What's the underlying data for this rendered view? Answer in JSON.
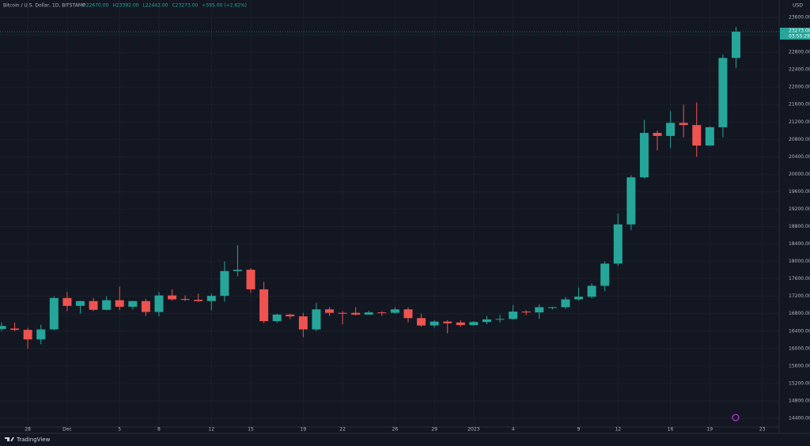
{
  "chart_data": {
    "type": "candlestick",
    "title": "Bitcoin / U.S. Dollar, 1D, BITSTAMP",
    "ohlc_legend": [
      "O22670.00",
      "H23382.00",
      "L22442.00",
      "C23273.00",
      "+595.00 (+2.62%)"
    ],
    "currency": "USD",
    "last_price_label": "23273.00",
    "countdown": "03:55:29",
    "brand": "TradingView",
    "up_color": "#26a69a",
    "down_color": "#ef5350",
    "grid": true,
    "categories": [
      null,
      null,
      "28",
      null,
      null,
      "Dec",
      null,
      null,
      null,
      "5",
      null,
      null,
      "8",
      null,
      null,
      null,
      "12",
      null,
      null,
      "15",
      null,
      null,
      null,
      "19",
      null,
      null,
      "22",
      null,
      null,
      null,
      "26",
      null,
      null,
      "29",
      null,
      null,
      "2023",
      null,
      null,
      "4",
      null,
      null,
      null,
      null,
      "9",
      null,
      null,
      "12",
      null,
      null,
      null,
      "16",
      null,
      null,
      "19",
      null,
      null,
      null,
      "23"
    ],
    "open": [
      16450,
      16460,
      16430,
      16210,
      16440,
      17160,
      16980,
      17090,
      16890,
      17110,
      16960,
      17090,
      16840,
      17220,
      17140,
      17120,
      17090,
      17210,
      17780,
      17810,
      17360,
      16630,
      16780,
      16740,
      16440,
      16900,
      16820,
      16820,
      16780,
      16830,
      16820,
      16900,
      16700,
      16530,
      16620,
      16600,
      16540,
      16610,
      16670,
      16680,
      16850,
      16830,
      16940,
      16950,
      17130,
      17190,
      17440,
      17950,
      18850,
      19930,
      20950,
      20880,
      21180,
      21130,
      20660,
      21080,
      22670,
      null,
      null
    ],
    "high": [
      16600,
      16600,
      16480,
      16550,
      17200,
      17300,
      17100,
      17160,
      17200,
      17420,
      17100,
      17140,
      17300,
      17360,
      17220,
      17260,
      17260,
      18000,
      18370,
      17850,
      17530,
      16800,
      16800,
      16820,
      17050,
      16950,
      16860,
      16950,
      16870,
      16860,
      16950,
      16950,
      16800,
      16650,
      16650,
      16650,
      16630,
      16750,
      16780,
      17000,
      16880,
      17020,
      16960,
      17180,
      17400,
      17500,
      18000,
      19100,
      19980,
      21250,
      21000,
      21450,
      21600,
      21650,
      21100,
      22750,
      23382,
      null,
      null
    ],
    "low": [
      16400,
      16400,
      16000,
      16100,
      16420,
      16860,
      16800,
      16860,
      16880,
      16880,
      16900,
      16750,
      16740,
      17100,
      17090,
      17070,
      16880,
      17080,
      17660,
      17280,
      16580,
      16590,
      16680,
      16260,
      16400,
      16750,
      16560,
      16760,
      16780,
      16750,
      16800,
      16600,
      16500,
      16480,
      16350,
      16500,
      16520,
      16560,
      16600,
      16660,
      16770,
      16680,
      16900,
      16910,
      17100,
      17150,
      17320,
      17900,
      18720,
      19900,
      20550,
      20600,
      20850,
      20400,
      20650,
      20850,
      22442,
      null,
      null
    ],
    "close": [
      16520,
      16430,
      16210,
      16440,
      17160,
      16980,
      17090,
      16890,
      17110,
      16960,
      17090,
      16840,
      17220,
      17130,
      17120,
      17090,
      17210,
      17780,
      17810,
      17360,
      16630,
      16780,
      16740,
      16440,
      16900,
      16820,
      16800,
      16780,
      16830,
      16820,
      16900,
      16700,
      16530,
      16620,
      16580,
      16540,
      16610,
      16670,
      16680,
      16850,
      16830,
      16950,
      16950,
      17130,
      17190,
      17440,
      17950,
      18850,
      19930,
      20950,
      20880,
      21180,
      21130,
      20660,
      21080,
      22670,
      23273,
      null,
      null
    ],
    "ylim": [
      14200,
      24000
    ],
    "yticks": [
      {
        "value": 23600,
        "label": "23600.00"
      },
      {
        "value": 23200,
        "label": "23200.00"
      },
      {
        "value": 22800,
        "label": "22800.00"
      },
      {
        "value": 22400,
        "label": "22400.00"
      },
      {
        "value": 22000,
        "label": "22000.00"
      },
      {
        "value": 21600,
        "label": "21600.00"
      },
      {
        "value": 21200,
        "label": "21200.00"
      },
      {
        "value": 20800,
        "label": "20800.00"
      },
      {
        "value": 20400,
        "label": "20400.00"
      },
      {
        "value": 20000,
        "label": "20000.00"
      },
      {
        "value": 19600,
        "label": "19600.00"
      },
      {
        "value": 19200,
        "label": "19200.00"
      },
      {
        "value": 18800,
        "label": "18800.00"
      },
      {
        "value": 18400,
        "label": "18400.00"
      },
      {
        "value": 18000,
        "label": "18000.00"
      },
      {
        "value": 17600,
        "label": "17600.00"
      },
      {
        "value": 17200,
        "label": "17200.00"
      },
      {
        "value": 16800,
        "label": "16800.00"
      },
      {
        "value": 16400,
        "label": "16400.00"
      },
      {
        "value": 16000,
        "label": "16000.00"
      },
      {
        "value": 15600,
        "label": "15600.00"
      },
      {
        "value": 15200,
        "label": "15200.00"
      },
      {
        "value": 14800,
        "label": "14800.00"
      },
      {
        "value": 14400,
        "label": "14400.00"
      }
    ]
  }
}
